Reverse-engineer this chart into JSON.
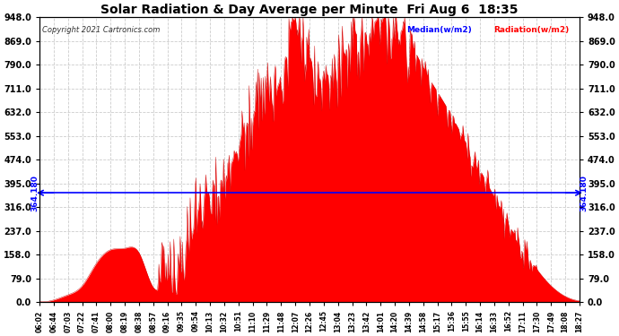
{
  "title": "Solar Radiation & Day Average per Minute  Fri Aug 6  18:35",
  "copyright": "Copyright 2021 Cartronics.com",
  "median_value": 364.18,
  "median_label": "364.180",
  "y_ticks": [
    0.0,
    79.0,
    158.0,
    237.0,
    316.0,
    395.0,
    474.0,
    553.0,
    632.0,
    711.0,
    790.0,
    869.0,
    948.0
  ],
  "ylim": [
    0.0,
    948.0
  ],
  "x_labels": [
    "06:02",
    "06:44",
    "07:03",
    "07:22",
    "07:41",
    "08:00",
    "08:19",
    "08:38",
    "08:57",
    "09:16",
    "09:35",
    "09:54",
    "10:13",
    "10:32",
    "10:51",
    "11:10",
    "11:29",
    "11:48",
    "12:07",
    "12:26",
    "12:45",
    "13:04",
    "13:23",
    "13:42",
    "14:01",
    "14:20",
    "14:39",
    "14:58",
    "15:17",
    "15:36",
    "15:55",
    "16:14",
    "16:33",
    "16:52",
    "17:11",
    "17:30",
    "17:49",
    "18:08",
    "18:27"
  ],
  "background_color": "#ffffff",
  "plot_bg_color": "#ffffff",
  "grid_color": "#cccccc",
  "fill_color": "#ff0000",
  "line_color": "#cc0000",
  "median_line_color": "#0000ff",
  "title_color": "#000000",
  "legend_median_color": "#0000ff",
  "legend_radiation_color": "#ff0000"
}
